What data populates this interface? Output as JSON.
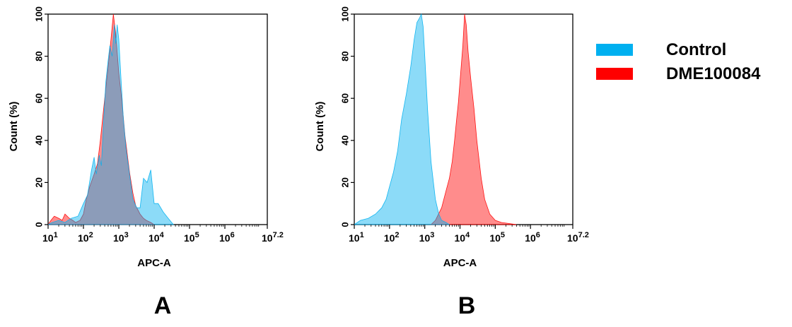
{
  "colors": {
    "control": "#00b0f0",
    "sample": "#ff0000",
    "overlap": "#8a8aa6"
  },
  "legend": [
    {
      "label": "Control",
      "color": "#00b0f0"
    },
    {
      "label": "DME100084",
      "color": "#ff0000"
    }
  ],
  "panel_labels": [
    "A",
    "B"
  ],
  "chart_data": [
    {
      "type": "area",
      "panel": "A",
      "title": "",
      "xlabel": "APC-A",
      "ylabel": "Count  (%)",
      "x_scale": "log10",
      "xlim": [
        10,
        15848932
      ],
      "ylim": [
        0,
        100
      ],
      "x_ticks": [
        10,
        100,
        1000,
        10000,
        100000,
        1000000,
        15848932
      ],
      "x_tick_labels": [
        {
          "base": "10",
          "exp": "1"
        },
        {
          "base": "10",
          "exp": "2"
        },
        {
          "base": "10",
          "exp": "3"
        },
        {
          "base": "10",
          "exp": "4"
        },
        {
          "base": "10",
          "exp": "5"
        },
        {
          "base": "10",
          "exp": "6"
        },
        {
          "base": "10",
          "exp": "7.2"
        }
      ],
      "y_ticks": [
        0,
        20,
        40,
        60,
        80,
        100
      ],
      "y_tick_labels": [
        "0",
        "20",
        "40",
        "60",
        "80",
        "100"
      ],
      "series": [
        {
          "name": "Control",
          "color": "#00b0f0",
          "x": [
            10,
            13,
            20,
            30,
            45,
            70,
            100,
            130,
            170,
            200,
            230,
            280,
            320,
            380,
            430,
            500,
            560,
            650,
            750,
            820,
            900,
            1000,
            1150,
            1350,
            1600,
            2000,
            2500,
            3200,
            4000,
            5000,
            6300,
            8000,
            10000,
            13000,
            18000,
            25000,
            35000
          ],
          "y": [
            0,
            1,
            2,
            1,
            3,
            4,
            10,
            14,
            26,
            32,
            24,
            33,
            28,
            52,
            68,
            78,
            85,
            80,
            95,
            86,
            95,
            88,
            70,
            50,
            36,
            24,
            12,
            8,
            8,
            22,
            20,
            26,
            10,
            10,
            6,
            3,
            0
          ]
        },
        {
          "name": "DME100084",
          "color": "#ff0000",
          "x": [
            10,
            12,
            15,
            20,
            25,
            30,
            40,
            50,
            60,
            80,
            100,
            120,
            150,
            200,
            250,
            300,
            400,
            500,
            600,
            700,
            800,
            900,
            1000,
            1200,
            1500,
            2000,
            2500,
            3000,
            4000,
            5000,
            6000,
            8000,
            10000
          ],
          "y": [
            0,
            2,
            4,
            3,
            2,
            5,
            3,
            2,
            1,
            2,
            5,
            12,
            18,
            24,
            29,
            40,
            60,
            75,
            88,
            100,
            92,
            82,
            72,
            60,
            42,
            25,
            15,
            9,
            5,
            3,
            2,
            1,
            0
          ]
        }
      ]
    },
    {
      "type": "area",
      "panel": "B",
      "title": "",
      "xlabel": "APC-A",
      "ylabel": "Count  (%)",
      "x_scale": "log10",
      "xlim": [
        10,
        15848932
      ],
      "ylim": [
        0,
        100
      ],
      "x_ticks": [
        10,
        100,
        1000,
        10000,
        100000,
        1000000,
        15848932
      ],
      "x_tick_labels": [
        {
          "base": "10",
          "exp": "1"
        },
        {
          "base": "10",
          "exp": "2"
        },
        {
          "base": "10",
          "exp": "3"
        },
        {
          "base": "10",
          "exp": "4"
        },
        {
          "base": "10",
          "exp": "5"
        },
        {
          "base": "10",
          "exp": "6"
        },
        {
          "base": "10",
          "exp": "7.2"
        }
      ],
      "y_ticks": [
        0,
        20,
        40,
        60,
        80,
        100
      ],
      "y_tick_labels": [
        "0",
        "20",
        "40",
        "60",
        "80",
        "100"
      ],
      "series": [
        {
          "name": "Control",
          "color": "#00b0f0",
          "x": [
            10,
            15,
            25,
            40,
            60,
            80,
            100,
            130,
            170,
            220,
            300,
            400,
            500,
            600,
            700,
            800,
            900,
            1000,
            1200,
            1500,
            2000,
            2500,
            3000,
            4000,
            5000
          ],
          "y": [
            0,
            2,
            3,
            5,
            8,
            12,
            18,
            25,
            35,
            50,
            62,
            75,
            88,
            96,
            98,
            100,
            94,
            80,
            55,
            30,
            12,
            5,
            2,
            1,
            0
          ]
        },
        {
          "name": "DME100084",
          "color": "#ff0000",
          "x": [
            1500,
            2000,
            3000,
            4000,
            5000,
            6000,
            7000,
            8000,
            9000,
            10000,
            12000,
            13500,
            15000,
            17000,
            20000,
            25000,
            30000,
            40000,
            50000,
            70000,
            100000,
            150000,
            250000,
            400000
          ],
          "y": [
            0,
            2,
            8,
            16,
            22,
            30,
            40,
            50,
            58,
            68,
            85,
            100,
            95,
            82,
            70,
            55,
            40,
            22,
            12,
            5,
            2,
            1,
            0.5,
            0
          ]
        }
      ]
    }
  ]
}
